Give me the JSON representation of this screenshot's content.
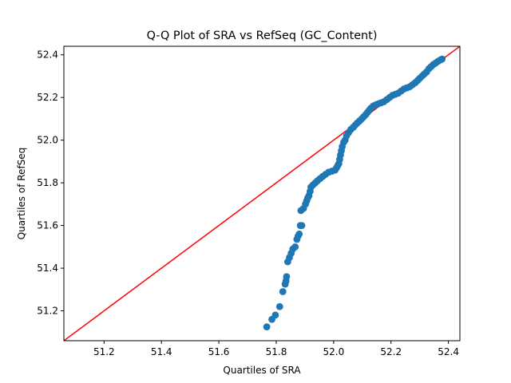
{
  "chart_data": {
    "type": "scatter",
    "title": "Q-Q Plot of SRA vs RefSeq (GC_Content)",
    "xlabel": "Quartiles of SRA",
    "ylabel": "Quartiles of RefSeq",
    "xlim": [
      51.06,
      52.44
    ],
    "ylim": [
      51.06,
      52.44
    ],
    "xticks": [
      "51.2",
      "51.4",
      "51.6",
      "51.8",
      "52.0",
      "52.2",
      "52.4"
    ],
    "yticks": [
      "51.2",
      "51.4",
      "51.6",
      "51.8",
      "52.0",
      "52.2",
      "52.4"
    ],
    "grid": false,
    "point_color": "#1f77b4",
    "reference_line": {
      "from": [
        51.06,
        51.06
      ],
      "to": [
        52.44,
        52.44
      ],
      "color": "#ff0000"
    },
    "points": [
      [
        51.767,
        51.125
      ],
      [
        51.785,
        51.16
      ],
      [
        51.797,
        51.18
      ],
      [
        51.812,
        51.22
      ],
      [
        51.823,
        51.29
      ],
      [
        51.831,
        51.325
      ],
      [
        51.834,
        51.34
      ],
      [
        51.836,
        51.36
      ],
      [
        51.84,
        51.43
      ],
      [
        51.846,
        51.45
      ],
      [
        51.852,
        51.47
      ],
      [
        51.858,
        51.49
      ],
      [
        51.866,
        51.5
      ],
      [
        51.872,
        51.535
      ],
      [
        51.876,
        51.55
      ],
      [
        51.88,
        51.56
      ],
      [
        51.884,
        51.6
      ],
      [
        51.889,
        51.6
      ],
      [
        51.886,
        51.67
      ],
      [
        51.895,
        51.68
      ],
      [
        51.902,
        51.7
      ],
      [
        51.906,
        51.715
      ],
      [
        51.91,
        51.73
      ],
      [
        51.914,
        51.74
      ],
      [
        51.918,
        51.76
      ],
      [
        51.921,
        51.78
      ],
      [
        51.928,
        51.79
      ],
      [
        51.936,
        51.8
      ],
      [
        51.944,
        51.81
      ],
      [
        51.953,
        51.82
      ],
      [
        51.962,
        51.83
      ],
      [
        51.972,
        51.84
      ],
      [
        51.983,
        51.85
      ],
      [
        51.995,
        51.855
      ],
      [
        52.005,
        51.86
      ],
      [
        52.01,
        51.87
      ],
      [
        52.014,
        51.88
      ],
      [
        52.018,
        51.89
      ],
      [
        52.021,
        51.91
      ],
      [
        52.024,
        51.93
      ],
      [
        52.027,
        51.95
      ],
      [
        52.03,
        51.97
      ],
      [
        52.035,
        51.99
      ],
      [
        52.04,
        52.0
      ],
      [
        52.045,
        52.02
      ],
      [
        52.052,
        52.035
      ],
      [
        52.06,
        52.05
      ],
      [
        52.068,
        52.06
      ],
      [
        52.075,
        52.07
      ],
      [
        52.082,
        52.08
      ],
      [
        52.09,
        52.09
      ],
      [
        52.098,
        52.1
      ],
      [
        52.105,
        52.11
      ],
      [
        52.112,
        52.12
      ],
      [
        52.118,
        52.13
      ],
      [
        52.124,
        52.14
      ],
      [
        52.13,
        52.15
      ],
      [
        52.138,
        52.16
      ],
      [
        52.146,
        52.165
      ],
      [
        52.155,
        52.17
      ],
      [
        52.165,
        52.175
      ],
      [
        52.175,
        52.18
      ],
      [
        52.185,
        52.19
      ],
      [
        52.195,
        52.2
      ],
      [
        52.205,
        52.21
      ],
      [
        52.215,
        52.215
      ],
      [
        52.225,
        52.22
      ],
      [
        52.235,
        52.23
      ],
      [
        52.245,
        52.24
      ],
      [
        52.255,
        52.245
      ],
      [
        52.265,
        52.25
      ],
      [
        52.275,
        52.26
      ],
      [
        52.285,
        52.27
      ],
      [
        52.293,
        52.28
      ],
      [
        52.3,
        52.29
      ],
      [
        52.308,
        52.3
      ],
      [
        52.316,
        52.31
      ],
      [
        52.324,
        52.32
      ],
      [
        52.332,
        52.335
      ],
      [
        52.34,
        52.345
      ],
      [
        52.348,
        52.355
      ],
      [
        52.356,
        52.362
      ],
      [
        52.364,
        52.37
      ],
      [
        52.372,
        52.376
      ],
      [
        52.378,
        52.38
      ]
    ]
  }
}
